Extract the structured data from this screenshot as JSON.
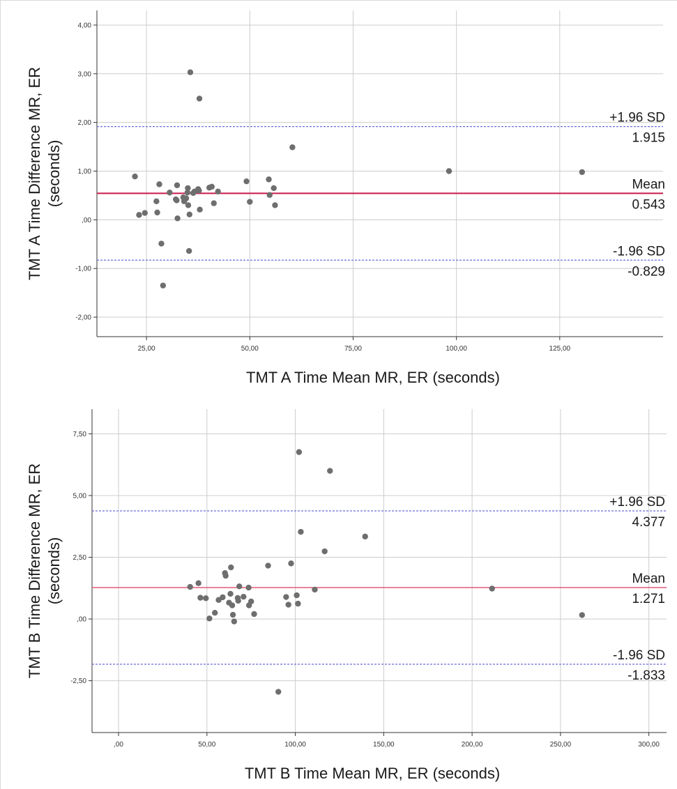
{
  "chart_data": [
    {
      "type": "scatter",
      "xlabel": "TMT A Time Mean MR, ER (seconds)",
      "ylabel_lines": [
        "TMT A Time Difference MR, ER",
        "(seconds)"
      ],
      "xlim": [
        13,
        150
      ],
      "ylim": [
        -2.4,
        4.3
      ],
      "x_ticks": [
        25,
        50,
        75,
        100,
        125
      ],
      "y_ticks": [
        -2,
        -1,
        0,
        1,
        2,
        3,
        4
      ],
      "x_tick_labels": [
        "25,00",
        "50,00",
        "75,00",
        "100,00",
        "125,00"
      ],
      "y_tick_labels": [
        "-2,00",
        "-1,00",
        ",00",
        "1,00",
        "2,00",
        "3,00",
        "4,00"
      ],
      "grid": true,
      "mean": 0.543,
      "upper_loa": 1.915,
      "lower_loa": -0.829,
      "annotations": {
        "upper_label": "+1.96 SD",
        "upper_value": "1.915",
        "mean_label": "Mean",
        "mean_value": "0.543",
        "lower_label": "-1.96 SD",
        "lower_value": "-0.829"
      },
      "points": [
        {
          "x": 22.2,
          "y": 0.89
        },
        {
          "x": 23.2,
          "y": 0.1
        },
        {
          "x": 24.6,
          "y": 0.14
        },
        {
          "x": 27.4,
          "y": 0.38
        },
        {
          "x": 27.6,
          "y": 0.15
        },
        {
          "x": 28.1,
          "y": 0.73
        },
        {
          "x": 28.6,
          "y": -0.49
        },
        {
          "x": 29.0,
          "y": -1.35
        },
        {
          "x": 30.6,
          "y": 0.56
        },
        {
          "x": 32.1,
          "y": 0.42
        },
        {
          "x": 32.3,
          "y": 0.4
        },
        {
          "x": 32.4,
          "y": 0.71
        },
        {
          "x": 32.5,
          "y": 0.03
        },
        {
          "x": 33.9,
          "y": 0.46
        },
        {
          "x": 34.1,
          "y": 0.38
        },
        {
          "x": 34.6,
          "y": 0.44
        },
        {
          "x": 34.9,
          "y": 0.56
        },
        {
          "x": 35.0,
          "y": 0.65
        },
        {
          "x": 35.1,
          "y": 0.3
        },
        {
          "x": 35.3,
          "y": -0.64
        },
        {
          "x": 35.4,
          "y": 0.11
        },
        {
          "x": 35.6,
          "y": 3.03
        },
        {
          "x": 36.3,
          "y": 0.55
        },
        {
          "x": 36.6,
          "y": 0.58
        },
        {
          "x": 37.5,
          "y": 0.63
        },
        {
          "x": 37.7,
          "y": 0.6
        },
        {
          "x": 37.8,
          "y": 2.49
        },
        {
          "x": 37.9,
          "y": 0.21
        },
        {
          "x": 40.2,
          "y": 0.66
        },
        {
          "x": 40.8,
          "y": 0.68
        },
        {
          "x": 41.3,
          "y": 0.34
        },
        {
          "x": 42.3,
          "y": 0.58
        },
        {
          "x": 49.2,
          "y": 0.79
        },
        {
          "x": 50.0,
          "y": 0.37
        },
        {
          "x": 54.6,
          "y": 0.83
        },
        {
          "x": 54.8,
          "y": 0.51
        },
        {
          "x": 55.8,
          "y": 0.65
        },
        {
          "x": 56.1,
          "y": 0.3
        },
        {
          "x": 60.3,
          "y": 1.49
        },
        {
          "x": 98.2,
          "y": 1.0
        },
        {
          "x": 130.4,
          "y": 0.98
        }
      ]
    },
    {
      "type": "scatter",
      "xlabel": "TMT B Time Mean MR, ER (seconds)",
      "ylabel_lines": [
        "TMT B Time Difference MR, ER",
        "(seconds)"
      ],
      "xlim": [
        -15,
        310
      ],
      "ylim": [
        -4.6,
        8.5
      ],
      "x_ticks": [
        0,
        50,
        100,
        150,
        200,
        250,
        300
      ],
      "y_ticks": [
        -2.5,
        0,
        2.5,
        5,
        7.5
      ],
      "x_tick_labels": [
        ",00",
        "50,00",
        "100,00",
        "150,00",
        "200,00",
        "250,00",
        "300,00"
      ],
      "y_tick_labels": [
        "-2,50",
        ",00",
        "2,50",
        "5,00",
        "7,50"
      ],
      "grid": true,
      "mean": 1.271,
      "upper_loa": 4.377,
      "lower_loa": -1.833,
      "annotations": {
        "upper_label": "+1.96 SD",
        "upper_value": "4.377",
        "mean_label": "Mean",
        "mean_value": "1.271",
        "lower_label": "-1.96 SD",
        "lower_value": "-1.833"
      },
      "points": [
        {
          "x": 40.5,
          "y": 1.3
        },
        {
          "x": 45.2,
          "y": 1.45
        },
        {
          "x": 46.3,
          "y": 0.86
        },
        {
          "x": 49.4,
          "y": 0.84
        },
        {
          "x": 51.4,
          "y": 0.02
        },
        {
          "x": 54.5,
          "y": 0.25
        },
        {
          "x": 56.6,
          "y": 0.77
        },
        {
          "x": 58.9,
          "y": 0.88
        },
        {
          "x": 60.2,
          "y": 1.86
        },
        {
          "x": 60.6,
          "y": 1.75
        },
        {
          "x": 62.5,
          "y": 0.66
        },
        {
          "x": 63.3,
          "y": 1.02
        },
        {
          "x": 63.6,
          "y": 2.09
        },
        {
          "x": 64.3,
          "y": 0.55
        },
        {
          "x": 64.7,
          "y": 0.17
        },
        {
          "x": 65.4,
          "y": -0.1
        },
        {
          "x": 67.4,
          "y": 0.85
        },
        {
          "x": 67.7,
          "y": 0.74
        },
        {
          "x": 68.3,
          "y": 1.32
        },
        {
          "x": 70.7,
          "y": 0.9
        },
        {
          "x": 73.6,
          "y": 1.27
        },
        {
          "x": 73.8,
          "y": 0.55
        },
        {
          "x": 75.0,
          "y": 0.71
        },
        {
          "x": 76.7,
          "y": 0.2
        },
        {
          "x": 84.6,
          "y": 2.16
        },
        {
          "x": 90.4,
          "y": -2.95
        },
        {
          "x": 94.8,
          "y": 0.89
        },
        {
          "x": 96.1,
          "y": 0.58
        },
        {
          "x": 97.6,
          "y": 2.25
        },
        {
          "x": 100.8,
          "y": 0.96
        },
        {
          "x": 101.5,
          "y": 0.62
        },
        {
          "x": 102.1,
          "y": 6.76
        },
        {
          "x": 103.1,
          "y": 3.53
        },
        {
          "x": 111.0,
          "y": 1.19
        },
        {
          "x": 116.6,
          "y": 2.74
        },
        {
          "x": 119.6,
          "y": 6.0
        },
        {
          "x": 139.5,
          "y": 3.34
        },
        {
          "x": 211.3,
          "y": 1.23
        },
        {
          "x": 262.2,
          "y": 0.16
        }
      ]
    }
  ]
}
